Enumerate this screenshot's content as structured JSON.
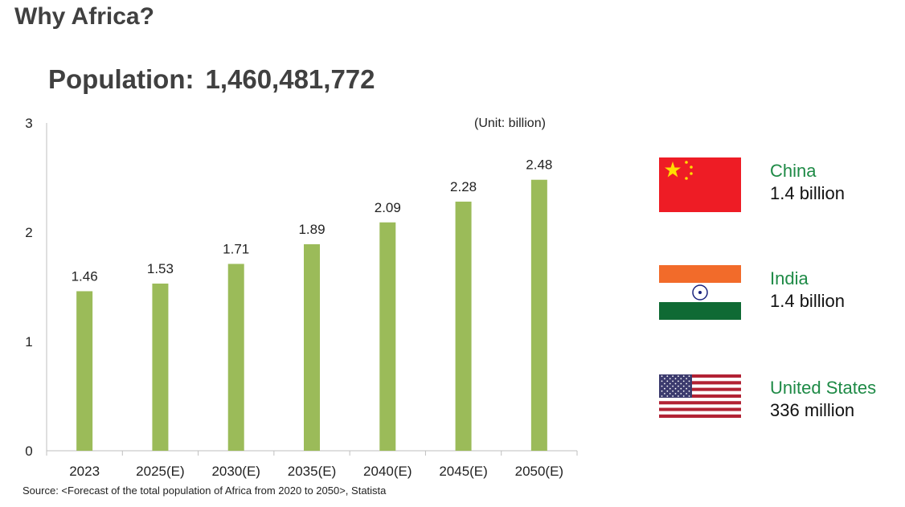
{
  "title": "Why Africa?",
  "population": {
    "label": "Population:",
    "value": "1,460,481,772"
  },
  "unit": "(Unit: billion)",
  "source": "Source: <Forecast of the total population of Africa from 2020 to 2050>, Statista",
  "chart_data": {
    "type": "bar",
    "title": "Population: 1,460,481,772",
    "xlabel": "",
    "ylabel": "",
    "unit": "billion",
    "categories": [
      "2023",
      "2025(E)",
      "2030(E)",
      "2035(E)",
      "2040(E)",
      "2045(E)",
      "2050(E)"
    ],
    "values": [
      1.46,
      1.53,
      1.71,
      1.89,
      2.09,
      2.28,
      2.48
    ],
    "labels": [
      "1.46",
      "1.53",
      "1.71",
      "1.89",
      "2.09",
      "2.28",
      "2.48"
    ],
    "ylim": [
      0,
      3
    ],
    "yticks": [
      "0",
      "1",
      "2",
      "3"
    ],
    "grid": false,
    "bar_color": "#9bbb59"
  },
  "countries": [
    {
      "name": "China",
      "value": "1.4 billion",
      "flag": "china-flag"
    },
    {
      "name": "India",
      "value": "1.4 billion",
      "flag": "india-flag"
    },
    {
      "name": "United States",
      "value": "336 million",
      "flag": "usa-flag"
    }
  ]
}
